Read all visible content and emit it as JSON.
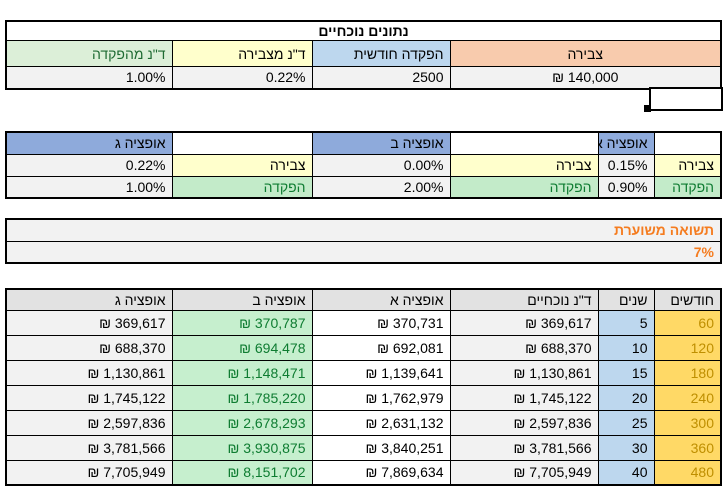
{
  "current_data": {
    "title": "נתונים נוכחיים",
    "columns": [
      {
        "label": "צבירה",
        "value": "₪ 140,000"
      },
      {
        "label": "הפקדה חודשית",
        "value": "2500"
      },
      {
        "label": "ד\"נ מצבירה",
        "value": "0.22%"
      },
      {
        "label": "ד\"נ מהפקדה",
        "value": "1.00%"
      }
    ]
  },
  "options": {
    "row_labels": {
      "accumulation": "צבירה",
      "deposit": "הפקדה"
    },
    "items": [
      {
        "name": "אופציה א",
        "accumulation": "0.15%",
        "deposit": "0.90%"
      },
      {
        "name": "אופציה ב",
        "accumulation": "0.00%",
        "deposit": "2.00%"
      },
      {
        "name": "אופציה ג",
        "accumulation": "0.22%",
        "deposit": "1.00%"
      }
    ]
  },
  "expected_return": {
    "title": "תשואה משוערת",
    "value": "7%"
  },
  "projection_table": {
    "headers": [
      "חודשים",
      "שנים",
      "ד\"נ נוכחיים",
      "אופציה א",
      "אופציה ב",
      "אופציה ג"
    ],
    "rows": [
      [
        "60",
        "5",
        "₪ 369,617",
        "₪ 370,731",
        "₪ 370,787",
        "₪ 369,617"
      ],
      [
        "120",
        "10",
        "₪ 688,370",
        "₪ 692,081",
        "₪ 694,478",
        "₪ 688,370"
      ],
      [
        "180",
        "15",
        "₪ 1,130,861",
        "₪ 1,139,641",
        "₪ 1,148,471",
        "₪ 1,130,861"
      ],
      [
        "240",
        "20",
        "₪ 1,745,122",
        "₪ 1,762,979",
        "₪ 1,785,220",
        "₪ 1,745,122"
      ],
      [
        "300",
        "25",
        "₪ 2,597,836",
        "₪ 2,631,132",
        "₪ 2,678,293",
        "₪ 2,597,836"
      ],
      [
        "360",
        "30",
        "₪ 3,781,566",
        "₪ 3,840,251",
        "₪ 3,930,875",
        "₪ 3,781,566"
      ],
      [
        "480",
        "40",
        "₪ 7,705,949",
        "₪ 7,869,634",
        "₪ 8,151,702",
        "₪ 7,705,949"
      ]
    ]
  },
  "selected_cell": {
    "content": ""
  },
  "colors": {
    "header_orange": "#f8cbad",
    "header_blue": "#bdd7ee",
    "header_yellow": "#ffffcc",
    "header_green": "#dcefd8",
    "option_header_blue": "#8eaadb",
    "value_gray": "#f2f2f2",
    "months_gold": "#ffd966",
    "months_text": "#bf8f00",
    "good_green_bg": "#c6efce",
    "good_green_text": "#0e7c31",
    "return_orange_text": "#f57c1f"
  }
}
